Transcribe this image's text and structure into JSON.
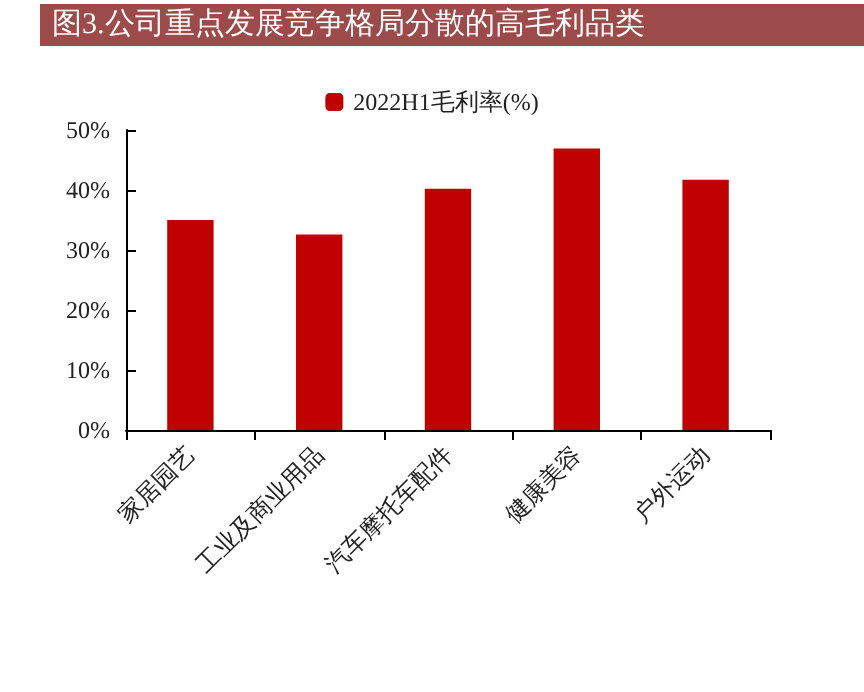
{
  "chart_data": {
    "type": "bar",
    "title": "图3.公司重点发展竞争格局分散的高毛利品类",
    "categories": [
      "家居园艺",
      "工业及商业用品",
      "汽车摩托车配件",
      "健康美容",
      "户外运动"
    ],
    "series": [
      {
        "name": "2022H1毛利率(%)",
        "color": "#c00000",
        "values": [
          35.0,
          32.6,
          40.2,
          46.9,
          41.7
        ]
      }
    ],
    "ylim": [
      0,
      50
    ],
    "yticks": [
      {
        "value": 0,
        "label": "0%"
      },
      {
        "value": 10,
        "label": "10%"
      },
      {
        "value": 20,
        "label": "20%"
      },
      {
        "value": 30,
        "label": "30%"
      },
      {
        "value": 40,
        "label": "40%"
      },
      {
        "value": 50,
        "label": "50%"
      }
    ],
    "grid": false,
    "legend": "top"
  }
}
